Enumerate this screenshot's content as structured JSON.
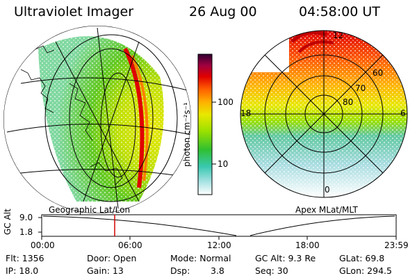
{
  "header": {
    "instrument": "Ultraviolet Imager",
    "date": "26 Aug 00",
    "time": "04:58:00 UT"
  },
  "colorbar": {
    "label": "photon cm⁻²s⁻¹",
    "ticks": [
      "100",
      "10"
    ]
  },
  "geo_panel": {
    "caption": "Geographic Lat/Lon"
  },
  "apex_panel": {
    "caption": "Apex MLat/MLT",
    "lat_labels": [
      "60",
      "70",
      "80"
    ],
    "mlt_labels": [
      "12",
      "18",
      "6",
      "0"
    ]
  },
  "timeline": {
    "axis_label": "GC Alt",
    "y_ticks": [
      "9.0",
      "1.8"
    ],
    "x_ticks": [
      "00:00",
      "06:00",
      "12:00",
      "18:00",
      "23:59"
    ]
  },
  "info": {
    "flt": "Flt: 1356",
    "ip": "IP: 18.0",
    "door": "Door: Open",
    "gain": "Gain: 13",
    "mode": "Mode: Normal",
    "dsp_label": "Dsp:",
    "dsp_value": "3.8",
    "gcalt": "GC Alt: 9.3 Re",
    "seq": "Seq: 30",
    "glat": "GLat: 69.8",
    "glon": "GLon: 294.5"
  },
  "colors": {
    "accent_marker": "#d40000",
    "scale": [
      "#ffffff",
      "#9fe0e0",
      "#38c8b0",
      "#30c030",
      "#9ae000",
      "#e8e800",
      "#ffb000",
      "#ff6000",
      "#e00000",
      "#a00040",
      "#400040"
    ]
  }
}
